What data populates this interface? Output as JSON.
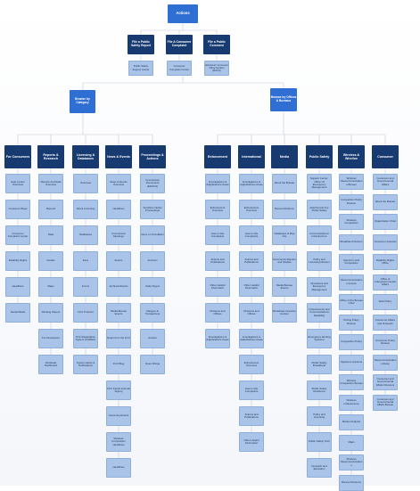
{
  "root": "Actions",
  "actions": [
    {
      "label": "File a Public Safety Report",
      "child": "Public Safety Support Center"
    },
    {
      "label": "File A Consumer Complaint",
      "child": "Consumer Complaint Center"
    },
    {
      "label": "File a Public Comment",
      "child": "Electronic Comment Filing System (ECFS)"
    }
  ],
  "browse_category": "Browse by Category",
  "browse_offices": "Browse by Offices & Bureaus",
  "category_columns": [
    {
      "header": "For Consumers",
      "items": [
        "Help Center Overview",
        "Consumer Blogs",
        "Consumer Complaint Center",
        "Disability Rights",
        "Headlines",
        "Social Media"
      ]
    },
    {
      "header": "Reports & Research",
      "items": [
        "Reports And Data Overview",
        "Reports",
        "Data",
        "Guides",
        "Maps",
        "Working Papers",
        "For Developers",
        "Workload Dashboard"
      ]
    },
    {
      "header": "Licensing & Databases",
      "items": [
        "Overview",
        "About Licensing",
        "Databases",
        "Fees",
        "Forms",
        "FCC Protocol",
        "FCC Registration System (CORES)",
        "System Alerts & Notifications"
      ]
    },
    {
      "header": "News & Events",
      "items": [
        "News & Events Overview",
        "Headlines",
        "Commission Meetings",
        "Events",
        "Archived Events",
        "Media Bureau Events",
        "Notes from the FCC",
        "FCC Blog",
        "FCC Feeds & Email Signup",
        "Upcoming Events",
        "Wireless Competition Headlines",
        "Headlines"
      ]
    },
    {
      "header": "Proceedings & Actions",
      "items": [
        "Commission Documents (EDOCS)",
        "Sunshine Notice Proceedings",
        "Items on Circulation",
        "Auctions",
        "Daily Digest",
        "Mergers & Transactions",
        "Auction",
        "Open Filings"
      ]
    }
  ],
  "office_columns": [
    {
      "header": "Enforcement",
      "items": [
        "Investigations & Adjudications Areas",
        "Enforcement Overview",
        "How to File Complaints",
        "Actions and Publications",
        "Other Helpful Information",
        "Divisions and Offices",
        "Investigations & Adjudications Areas"
      ]
    },
    {
      "header": "International",
      "items": [
        "Investigations & Adjudications Areas",
        "Enforcement Overview",
        "How to File Complaints",
        "Actions and Publications",
        "Other Helpful Information",
        "Divisions and Offices",
        "Investigations & Adjudications Areas",
        "Enforcement Overview",
        "How to File Complaints",
        "Actions and Publications",
        "Other Helpful Information"
      ]
    },
    {
      "header": "Media",
      "items": [
        "About the Bureau",
        "Bureau Divisions",
        "Databases & Map Info",
        "Documents Reports and Studies",
        "Media Bureau Events",
        "Broadcast Incentive Auction"
      ]
    },
    {
      "header": "Public Safety",
      "items": [
        "Support Center, Office Of Emergency Management",
        "Attachments For Public Safety",
        "Communications Infrastructure",
        "Policy and Licensing Division",
        "Operations and Emergency Management",
        "Cybersecurity and Communications Reliability",
        "Emergency Alerting Systems",
        "Public Safety Broadband",
        "Public Safety Resilience",
        "Policy and Licensing",
        "Public Safety Tech",
        "Outreach and Education"
      ]
    },
    {
      "header": "Wireless & Wireline",
      "items": [
        "Wireless Telecommunications Bureau",
        "Competition Policy Division",
        "Wireless Competition",
        "Broadband Division",
        "Spectrum and Competition",
        "Telecommunications Access",
        "Office of the Bureau Chief",
        "Pricing Policy Division",
        "Competition Policy",
        "Spectrum Auctions",
        "Wireline Competition Bureau",
        "Wireless Infrastructure",
        "Market Analysis",
        "Maps",
        "Wireless Telecommunications",
        "Bureau Divisions"
      ]
    },
    {
      "header": "Consumer",
      "items": [
        "Consumer and Governmental Affairs",
        "About the Bureau",
        "Organization Chart",
        "Consumer Inquiries",
        "Disability Rights Office",
        "Office of Intergovernmental Affairs",
        "Web Policy",
        "Consumer Affairs and Outreach",
        "Consumer Policy Division",
        "Telecommunications Relay",
        "Consumer and Governmental Affairs Directory",
        "Consumer and Governmental Affairs Bureau"
      ]
    }
  ]
}
